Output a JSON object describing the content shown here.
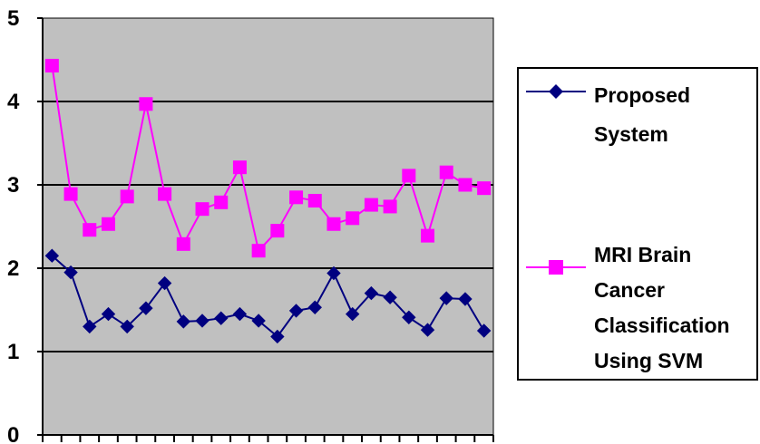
{
  "chart_data": {
    "type": "line",
    "title": "",
    "xlabel": "",
    "ylabel": "",
    "ylim": [
      0,
      5
    ],
    "yticks": [
      "0",
      "1",
      "2",
      "3",
      "4",
      "5"
    ],
    "x": [
      1,
      2,
      3,
      4,
      5,
      6,
      7,
      8,
      9,
      10,
      11,
      12,
      13,
      14,
      15,
      16,
      17,
      18,
      19,
      20,
      21,
      22,
      23,
      24
    ],
    "grid": true,
    "plot_background": "#c0c0c0",
    "legend_position": "right",
    "series": [
      {
        "name_lines": [
          "Proposed",
          "System"
        ],
        "color": "#000080",
        "marker": "diamond",
        "values": [
          2.15,
          1.95,
          1.3,
          1.45,
          1.3,
          1.52,
          1.82,
          1.36,
          1.37,
          1.4,
          1.45,
          1.37,
          1.18,
          1.49,
          1.53,
          1.94,
          1.45,
          1.7,
          1.65,
          1.41,
          1.26,
          1.64,
          1.63,
          1.25
        ]
      },
      {
        "name_lines": [
          "MRI Brain",
          "Cancer",
          "Classification",
          "Using SVM"
        ],
        "color": "#ff00ff",
        "marker": "square",
        "values": [
          4.43,
          2.89,
          2.46,
          2.53,
          2.86,
          3.97,
          2.89,
          2.29,
          2.71,
          2.79,
          3.21,
          2.21,
          2.45,
          2.85,
          2.81,
          2.53,
          2.6,
          2.76,
          2.74,
          3.11,
          2.39,
          3.15,
          3.0,
          2.96
        ]
      }
    ]
  }
}
